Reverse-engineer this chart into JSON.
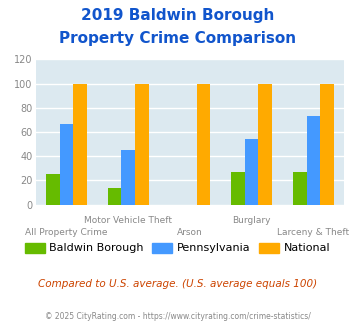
{
  "title_line1": "2019 Baldwin Borough",
  "title_line2": "Property Crime Comparison",
  "categories": [
    "All Property Crime",
    "Motor Vehicle Theft",
    "Arson",
    "Burglary",
    "Larceny & Theft"
  ],
  "x_labels_line1": [
    "",
    "Motor Vehicle Theft",
    "",
    "Burglary",
    ""
  ],
  "x_labels_line2": [
    "All Property Crime",
    "",
    "Arson",
    "",
    "Larceny & Theft"
  ],
  "series": {
    "Baldwin Borough": [
      25,
      14,
      0,
      27,
      27
    ],
    "Pennsylvania": [
      67,
      45,
      0,
      54,
      73
    ],
    "National": [
      100,
      100,
      100,
      100,
      100
    ]
  },
  "colors": {
    "Baldwin Borough": "#66bb00",
    "Pennsylvania": "#4499ff",
    "National": "#ffaa00"
  },
  "ylim": [
    0,
    120
  ],
  "yticks": [
    0,
    20,
    40,
    60,
    80,
    100,
    120
  ],
  "title_color": "#1155cc",
  "axis_bg_color": "#dce9f0",
  "fig_bg_color": "#ffffff",
  "grid_color": "#ffffff",
  "footnote1": "Compared to U.S. average. (U.S. average equals 100)",
  "footnote2": "© 2025 CityRating.com - https://www.cityrating.com/crime-statistics/",
  "footnote1_color": "#cc4400",
  "footnote2_color": "#888888",
  "tick_color": "#888888"
}
